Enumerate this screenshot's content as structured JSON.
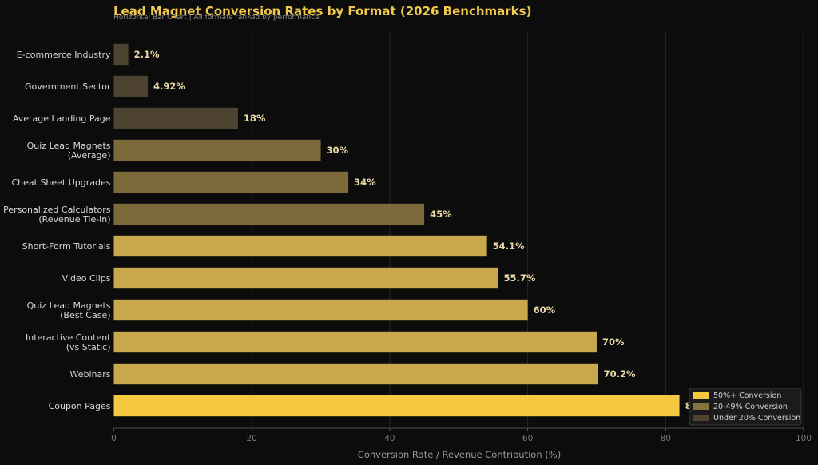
{
  "chart_data": {
    "type": "bar",
    "orientation": "horizontal",
    "title": "Lead Magnet Conversion Rates by Format (2026 Benchmarks)",
    "subtitle": "Horizontal Bar Chart  |  All formats ranked by performance",
    "xlabel": "Conversion Rate / Revenue Contribution (%)",
    "ylabel": "",
    "xlim": [
      0,
      100
    ],
    "xticks": [
      0,
      20,
      40,
      60,
      80,
      100
    ],
    "grid": true,
    "legend_position": "bottom-right",
    "categories": [
      "E-commerce Industry",
      "Government Sector",
      "Average Landing Page",
      "Quiz Lead Magnets\n(Average)",
      "Cheat Sheet Upgrades",
      "Personalized Calculators\n(Revenue Tie-in)",
      "Short-Form Tutorials",
      "Video Clips",
      "Quiz Lead Magnets\n(Best Case)",
      "Interactive Content\n(vs Static)",
      "Webinars",
      "Coupon Pages"
    ],
    "values": [
      2.1,
      4.92,
      18,
      30,
      34,
      45,
      54.1,
      55.7,
      60,
      70,
      70.2,
      82
    ],
    "value_labels": [
      "2.1%",
      "4.92%",
      "18%",
      "30%",
      "34%",
      "45%",
      "54.1%",
      "55.7%",
      "60%",
      "70%",
      "70.2%",
      "82%"
    ],
    "tiers": [
      "low",
      "low",
      "low",
      "mid",
      "mid",
      "mid",
      "high",
      "high",
      "high",
      "high",
      "high",
      "top"
    ],
    "legend": [
      {
        "label": "50%+ Conversion",
        "color": "#f5c842"
      },
      {
        "label": "20-49% Conversion",
        "color": "#857340"
      },
      {
        "label": "Under 20% Conversion",
        "color": "#4e4230"
      }
    ],
    "colors": {
      "top": "#f5c842",
      "high": "#c9a84c",
      "mid": "#7d6a3a",
      "low": "#4e4230",
      "background": "#0c0c0c",
      "grid": "#262626"
    }
  }
}
